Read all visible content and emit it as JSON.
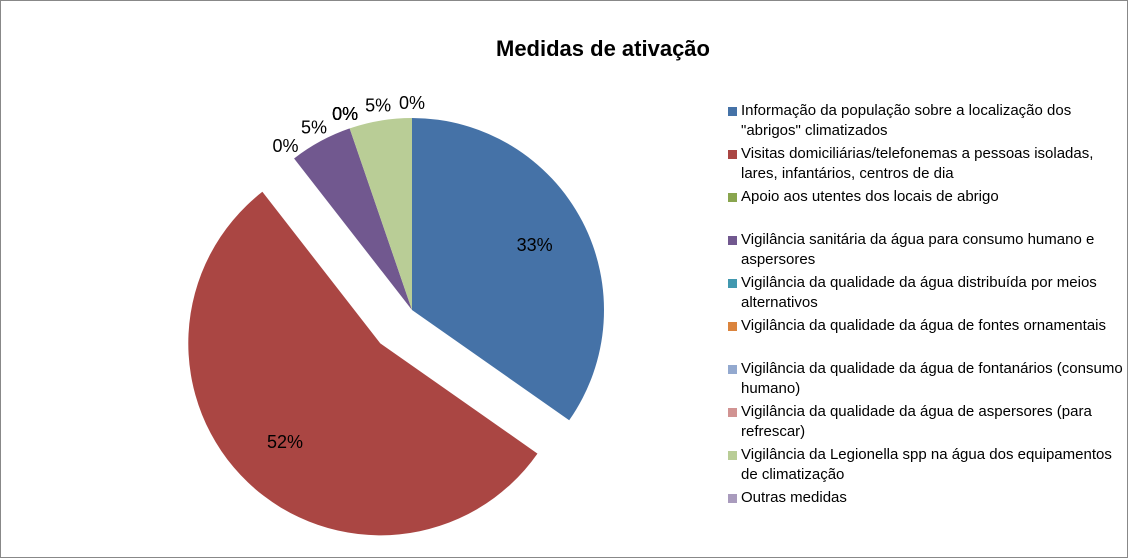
{
  "chart_data": {
    "type": "pie",
    "title": "Medidas de ativação",
    "categories": [
      "Informação da população sobre a localização dos \"abrigos\" climatizados",
      "Visitas domiciliárias/telefonemas a pessoas isoladas, lares, infantários, centros de dia",
      "Apoio aos utentes dos locais de abrigo",
      "Vigilância sanitária da água para consumo humano e aspersores",
      "Vigilância da qualidade da água distribuída por meios alternativos",
      "Vigilância da qualidade da água de fontes ornamentais",
      "Vigilância da qualidade da água de fontanários (consumo humano)",
      "Vigilância da qualidade da água de aspersores (para refrescar)",
      "Vigilância da Legionella spp na água dos equipamentos de climatização",
      "Outras medidas"
    ],
    "values": [
      33,
      52,
      0,
      5,
      0,
      0,
      0,
      0,
      5,
      0
    ],
    "value_labels": [
      "33%",
      "52%",
      "0%",
      "5%",
      "0%",
      "0%",
      "0%",
      "0%",
      "5%",
      "0%"
    ],
    "colors": [
      "#4572A7",
      "#AA4643",
      "#89A54E",
      "#71588F",
      "#4198AF",
      "#DB843D",
      "#93A9CF",
      "#D19392",
      "#B9CD96",
      "#A99BBD"
    ],
    "legend": "right"
  }
}
